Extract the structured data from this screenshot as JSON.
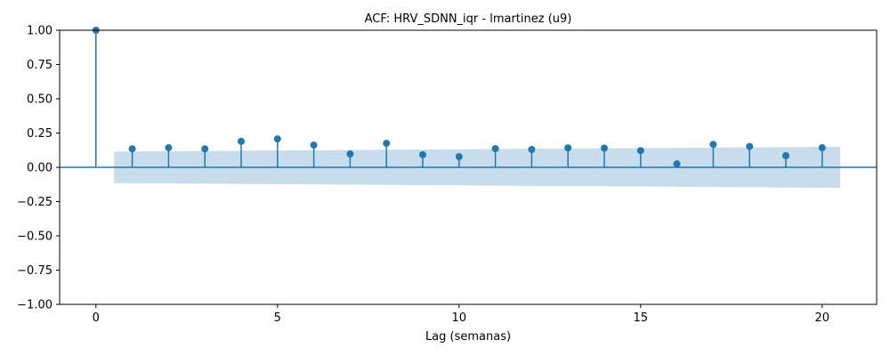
{
  "chart_data": {
    "type": "stem",
    "title": "ACF: HRV_SDNN_iqr - lmartinez (u9)",
    "xlabel": "Lag (semanas)",
    "ylabel": "",
    "xlim": [
      -1,
      21.5
    ],
    "ylim": [
      -1.0,
      1.0
    ],
    "xticks": [
      0,
      5,
      10,
      15,
      20
    ],
    "yticks": [
      "1.00",
      "0.75",
      "0.50",
      "0.25",
      "0.00",
      "−0.25",
      "−0.50",
      "−0.75",
      "−1.00"
    ],
    "ytick_values": [
      1.0,
      0.75,
      0.5,
      0.25,
      0.0,
      -0.25,
      -0.5,
      -0.75,
      -1.0
    ],
    "lags": [
      0,
      1,
      2,
      3,
      4,
      5,
      6,
      7,
      8,
      9,
      10,
      11,
      12,
      13,
      14,
      15,
      16,
      17,
      18,
      19,
      20
    ],
    "values": [
      1.0,
      0.135,
      0.143,
      0.135,
      0.19,
      0.207,
      0.162,
      0.097,
      0.175,
      0.092,
      0.078,
      0.136,
      0.13,
      0.142,
      0.14,
      0.122,
      0.025,
      0.167,
      0.152,
      0.085,
      0.143
    ],
    "confidence_band": {
      "x": [
        0.5,
        20.5
      ],
      "upper": [
        0.115,
        0.15
      ],
      "lower": [
        -0.115,
        -0.15
      ]
    },
    "grid": false,
    "colors": {
      "stem": "#1f77b4",
      "band": "#1f77b4",
      "zero_line": "#1f77b4"
    }
  }
}
